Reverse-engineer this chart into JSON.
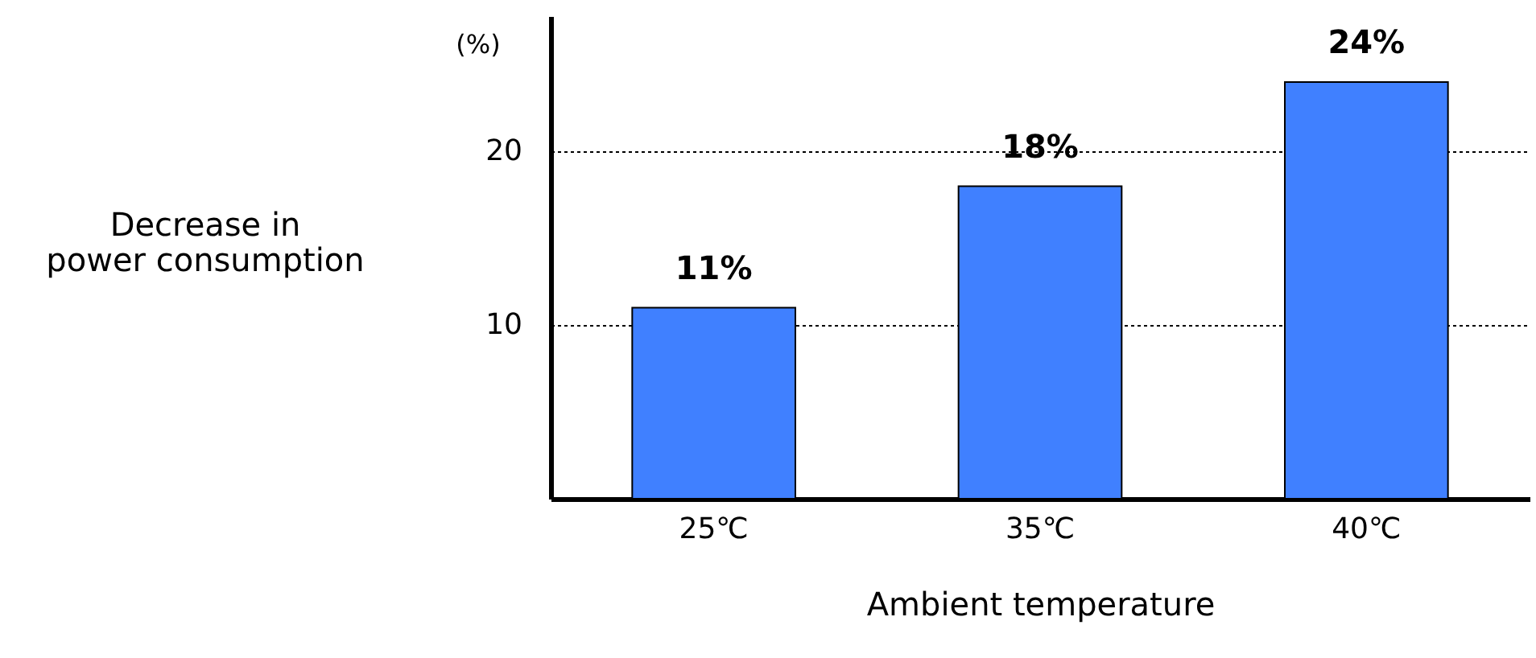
{
  "chart_data": {
    "type": "bar",
    "categories": [
      "25℃",
      "35℃",
      "40℃"
    ],
    "values": [
      11,
      18,
      24
    ],
    "value_labels": [
      "11%",
      "18%",
      "24%"
    ],
    "color": "#4080ff",
    "xlabel": "Ambient temperature",
    "ylabel": "Decrease in power consumption",
    "annotations": [
      "(%)"
    ],
    "ylim": [
      0,
      27.8
    ],
    "yticks": [
      10,
      20
    ],
    "grid": "y"
  }
}
